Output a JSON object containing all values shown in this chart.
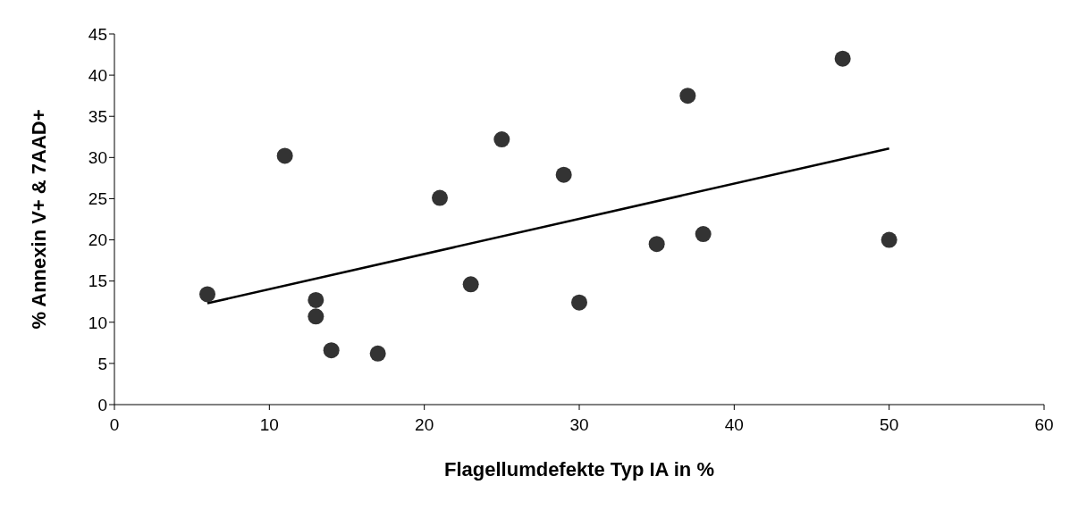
{
  "chart_data": {
    "type": "scatter",
    "xlabel": "Flagellumdefekte Typ IA in %",
    "ylabel": "% Annexin V+ & 7AAD+",
    "xlim": [
      0,
      60
    ],
    "xticks": [
      0,
      10,
      20,
      30,
      40,
      50,
      60
    ],
    "ylim": [
      0,
      45
    ],
    "yticks": [
      0,
      5,
      10,
      15,
      20,
      25,
      30,
      35,
      40,
      45
    ],
    "grid": false,
    "legend": false,
    "marker": "circle",
    "series": [
      {
        "color": "#333333",
        "x": [
          6,
          11,
          13,
          13,
          14,
          17,
          21,
          23,
          25,
          29,
          30,
          35,
          37,
          38,
          47,
          50
        ],
        "values": [
          13.4,
          30.2,
          12.7,
          10.7,
          6.6,
          6.2,
          25.1,
          14.6,
          32.2,
          27.9,
          12.4,
          19.5,
          37.5,
          20.7,
          42,
          20
        ]
      },
      {
        "type": "line",
        "color": "#000000",
        "x": [
          6,
          50
        ],
        "values": [
          12.3,
          31.1
        ],
        "marker": "none",
        "line_style": "solid"
      }
    ]
  }
}
